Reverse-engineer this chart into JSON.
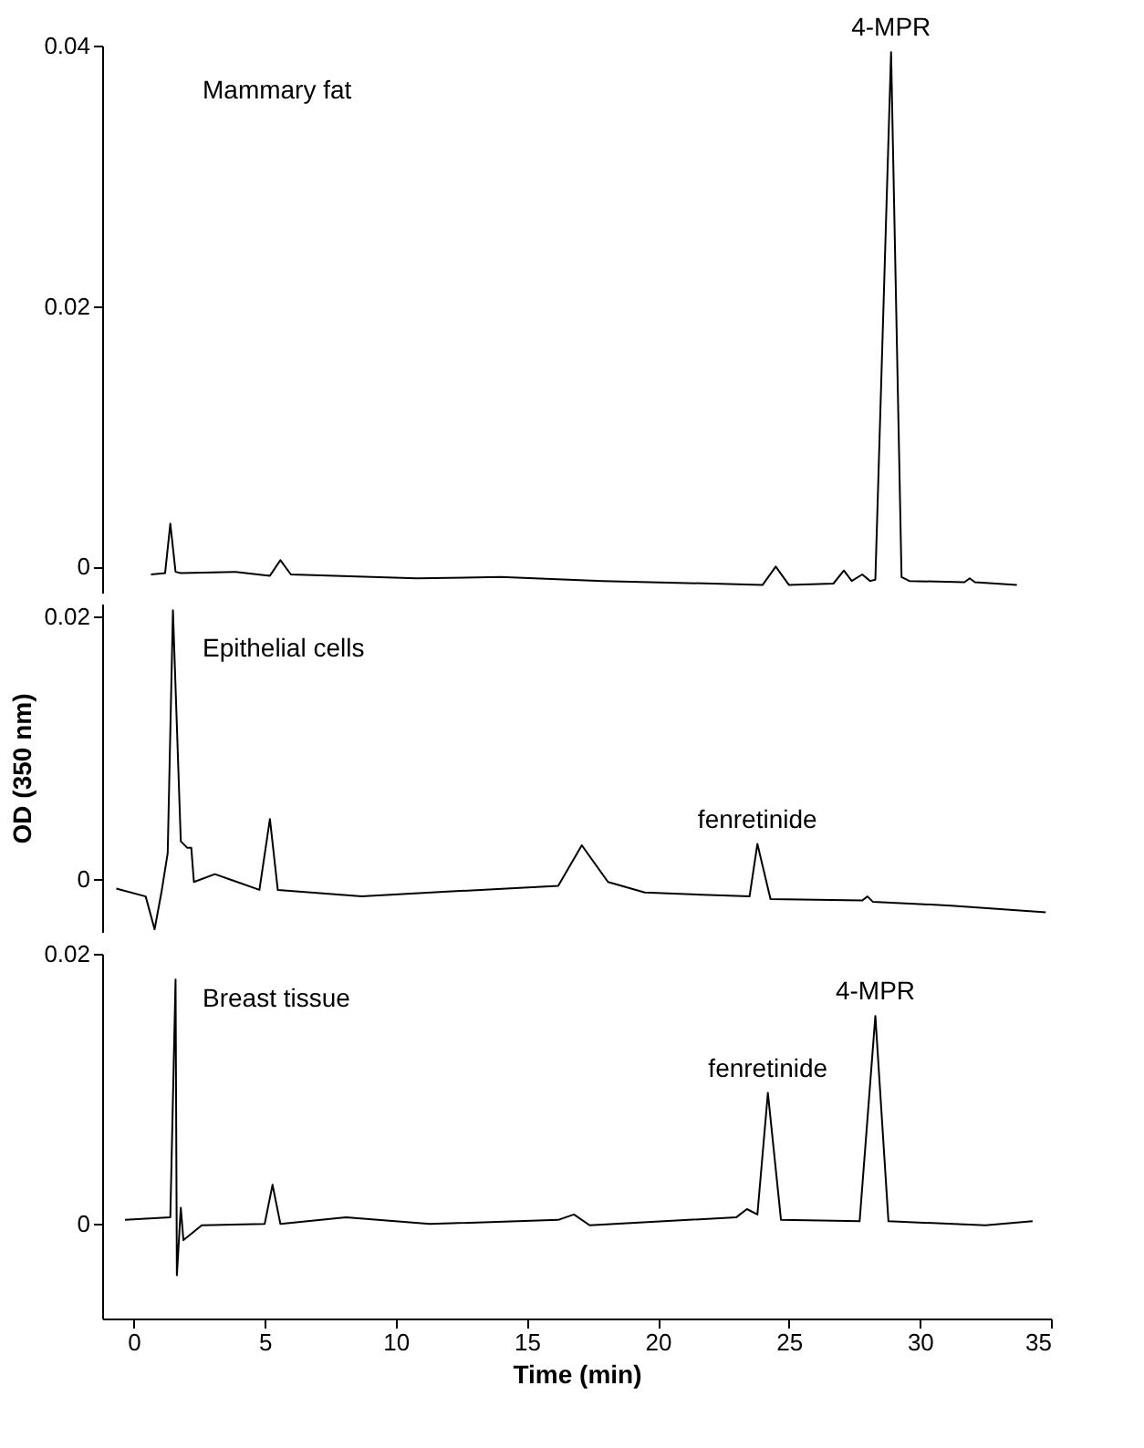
{
  "chart_data": [
    {
      "type": "line",
      "xlim": [
        -1.2,
        35
      ],
      "ylim": [
        -0.002,
        0.04
      ],
      "yticks": [
        0,
        0.02,
        0.04
      ],
      "tick_labels": "y",
      "annotations": [
        "Mammary fat",
        {
          "text": "4-MPR",
          "x": 28.9,
          "y": 0.0395
        }
      ],
      "series": [
        {
          "color": "#000000",
          "x": [
            0.66,
            1.2,
            1.4,
            1.6,
            1.8,
            3.9,
            5.2,
            5.6,
            6.0,
            10.8,
            14,
            17.9,
            24.0,
            24.5,
            25.0,
            26.7,
            27.1,
            27.4,
            27.8,
            28.1,
            28.3,
            28.9,
            29.3,
            29.6,
            31.7,
            31.9,
            32.1,
            33.7
          ],
          "values": [
            -0.0006,
            -0.0005,
            0.0033,
            -0.0004,
            -0.0005,
            -0.0004,
            -0.0007,
            0.0005,
            -0.0006,
            -0.0009,
            -0.0008,
            -0.0011,
            -0.0014,
            0.0,
            -0.0014,
            -0.0013,
            -0.0003,
            -0.0011,
            -0.0006,
            -0.0011,
            -0.001,
            0.0395,
            -0.0008,
            -0.0011,
            -0.0012,
            -0.0009,
            -0.0012,
            -0.0014
          ]
        }
      ]
    },
    {
      "type": "line",
      "xlim": [
        -1.2,
        35
      ],
      "ylim": [
        -0.004,
        0.021
      ],
      "yticks": [
        0,
        0.02
      ],
      "tick_labels": "y",
      "ylabel": "OD (350 nm)",
      "annotations": [
        "Epithelial cells",
        {
          "text": "fenretinide",
          "x": 23.8,
          "y": 0.0027
        }
      ],
      "series": [
        {
          "color": "#000000",
          "x": [
            -0.66,
            0.46,
            0.8,
            1.06,
            1.3,
            1.5,
            1.8,
            2.05,
            2.2,
            2.3,
            3.1,
            4.8,
            5.2,
            5.5,
            8.7,
            12.3,
            16.2,
            17.1,
            18.1,
            19.5,
            23.5,
            23.8,
            24.3,
            27.8,
            28.0,
            28.2,
            31.2,
            34.8
          ],
          "values": [
            -0.0007,
            -0.0013,
            -0.0038,
            -0.001,
            0.002,
            0.0205,
            0.0029,
            0.0024,
            0.0024,
            -0.0002,
            0.0004,
            -0.0008,
            0.0046,
            -0.0008,
            -0.0013,
            -0.0009,
            -0.0005,
            0.0026,
            -0.0002,
            -0.001,
            -0.0013,
            0.0027,
            -0.0015,
            -0.0016,
            -0.0013,
            -0.0017,
            -0.002,
            -0.0025
          ]
        }
      ]
    },
    {
      "type": "line",
      "xlim": [
        -1.2,
        35
      ],
      "ylim": [
        -0.007,
        0.02
      ],
      "xticks": [
        0,
        5,
        10,
        15,
        20,
        25,
        30,
        35
      ],
      "yticks": [
        0,
        0.02
      ],
      "xlabel": "Time (min)",
      "annotations": [
        "Breast tissue",
        {
          "text": "fenretinide",
          "x": 24.2,
          "y": 0.0097
        },
        {
          "text": "4-MPR",
          "x": 28.3,
          "y": 0.0154
        }
      ],
      "series": [
        {
          "color": "#000000",
          "x": [
            -0.33,
            1.4,
            1.6,
            1.65,
            1.8,
            1.9,
            2.6,
            5.0,
            5.3,
            5.6,
            8.1,
            11.3,
            16.2,
            16.8,
            17.4,
            23.0,
            23.4,
            23.8,
            24.2,
            24.7,
            27.7,
            28.3,
            28.8,
            32.5,
            34.3
          ],
          "values": [
            0.0003,
            0.0005,
            0.0181,
            -0.0038,
            0.0012,
            -0.0012,
            -0.0001,
            0.0,
            0.0029,
            0.0,
            0.0005,
            0.0,
            0.0003,
            0.0007,
            -0.0001,
            0.0005,
            0.0011,
            0.0007,
            0.0097,
            0.0003,
            0.0002,
            0.0154,
            0.0002,
            -0.0001,
            0.0002
          ]
        }
      ]
    }
  ]
}
